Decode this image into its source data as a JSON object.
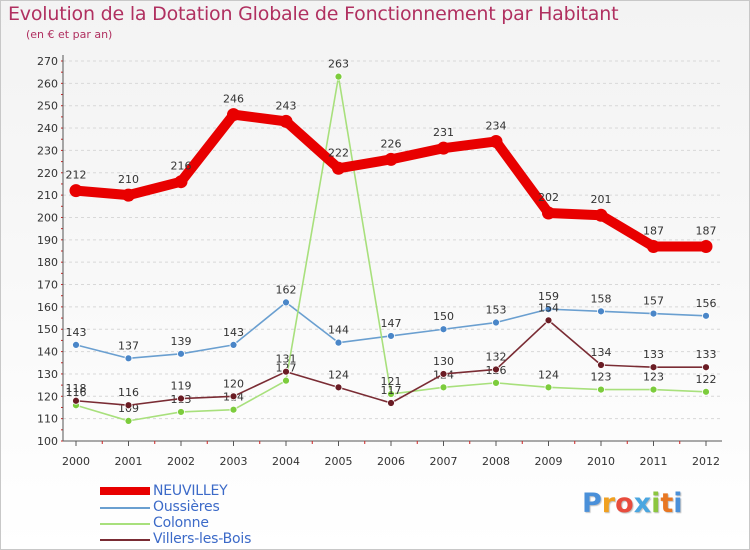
{
  "header": {
    "title": "Evolution de la Dotation Globale de Fonctionnement par Habitant",
    "subtitle": "(en € et par an)"
  },
  "logo": {
    "text": "Proxiti",
    "letters": [
      "P",
      "r",
      "o",
      "x",
      "i",
      "t",
      "i"
    ],
    "colors": [
      "#4a90d9",
      "#f0a020",
      "#e84c3d",
      "#4aa6e0",
      "#8cc63f",
      "#e87722",
      "#4a90d9"
    ]
  },
  "chart_data": {
    "type": "line",
    "title": "Evolution de la Dotation Globale de Fonctionnement par Habitant",
    "subtitle": "(en € et par an)",
    "xlabel": "",
    "ylabel": "",
    "x": [
      "2000",
      "2001",
      "2002",
      "2003",
      "2004",
      "2005",
      "2006",
      "2007",
      "2008",
      "2009",
      "2010",
      "2011",
      "2012"
    ],
    "ylim": [
      100,
      270
    ],
    "yticks": [
      100,
      110,
      120,
      130,
      140,
      150,
      160,
      170,
      180,
      190,
      200,
      210,
      220,
      230,
      240,
      250,
      260,
      270
    ],
    "grid": "horizontal dashed",
    "legend_position": "bottom-left",
    "series": [
      {
        "name": "NEUVILLEY",
        "color": "#e80000",
        "marker_color": "#e80000",
        "emphasis": "bold",
        "values": [
          212,
          210,
          216,
          246,
          243,
          222,
          226,
          231,
          234,
          202,
          201,
          187,
          187
        ]
      },
      {
        "name": "Oussières",
        "color": "#6a9fd0",
        "marker_color": "#4a86c8",
        "emphasis": "normal",
        "values": [
          143,
          137,
          139,
          143,
          162,
          144,
          147,
          150,
          153,
          159,
          158,
          157,
          156
        ]
      },
      {
        "name": "Colonne",
        "color": "#a8e07c",
        "marker_color": "#7ccc3c",
        "emphasis": "normal",
        "values": [
          116,
          109,
          113,
          114,
          127,
          263,
          121,
          124,
          126,
          124,
          123,
          123,
          122
        ]
      },
      {
        "name": "Villers-les-Bois",
        "color": "#7a2c34",
        "marker_color": "#6a1c24",
        "emphasis": "normal",
        "values": [
          118,
          116,
          119,
          120,
          131,
          124,
          117,
          130,
          132,
          154,
          134,
          133,
          133
        ]
      }
    ]
  }
}
